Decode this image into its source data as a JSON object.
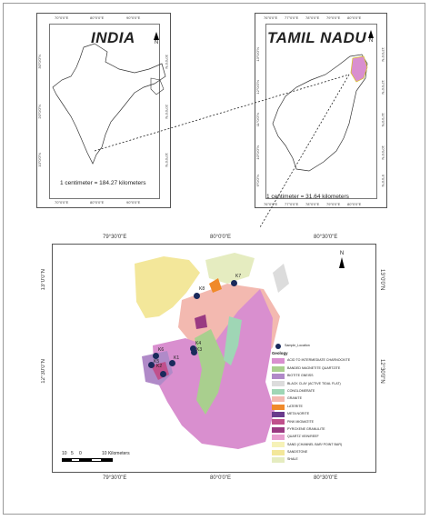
{
  "india_panel": {
    "title": "INDIA",
    "scale_text": "1 centimeter = 184.27 kilometers",
    "north_label": "N",
    "top_ticks": [
      "70°0'0\"E",
      "80°0'0\"E",
      "90°0'0\"E"
    ],
    "bottom_ticks": [
      "70°0'0\"E",
      "80°0'0\"E",
      "90°0'0\"E"
    ],
    "left_ticks": [
      "30°0'0\"N",
      "20°0'0\"N",
      "10°0'0\"N"
    ],
    "right_ticks": [
      "30°0'0\"N",
      "20°0'0\"N",
      "10°0'0\"N"
    ]
  },
  "tamilnadu_panel": {
    "title": "TAMIL NADU",
    "scale_text": "1 centimeter = 31.64 kilometers",
    "north_label": "N",
    "top_ticks": [
      "76°0'0\"E",
      "77°0'0\"E",
      "78°0'0\"E",
      "79°0'0\"E",
      "80°0'0\"E"
    ],
    "bottom_ticks": [
      "76°0'0\"E",
      "77°0'0\"E",
      "78°0'0\"E",
      "79°0'0\"E",
      "80°0'0\"E"
    ],
    "left_ticks": [
      "13°0'0\"N",
      "12°0'0\"N",
      "11°0'0\"N",
      "10°0'0\"N",
      "9°0'0\"N"
    ],
    "right_ticks": [
      "13°0'0\"N",
      "12°0'0\"N",
      "11°0'0\"N",
      "10°0'0\"N",
      "9°0'0\"N"
    ]
  },
  "study_map": {
    "top_coords": [
      "79°30'0\"E",
      "80°0'0\"E",
      "80°30'0\"E"
    ],
    "bottom_coords": [
      "79°30'0\"E",
      "80°0'0\"E",
      "80°30'0\"E"
    ],
    "left_coords": [
      "13°0'0\"N",
      "12°30'0\"N"
    ],
    "right_coords": [
      "13°0'0\"N",
      "12°30'0\"N"
    ],
    "north_label": "N",
    "samples": [
      "K1",
      "K2",
      "K3",
      "K4",
      "K5",
      "K6",
      "K7",
      "K8"
    ],
    "scale_bar": {
      "labels": [
        "10",
        "5",
        "0",
        "10 Kilometers"
      ]
    },
    "legend": {
      "sample_label": "Sample_Location",
      "heading": "Geology",
      "items": [
        {
          "label": "ACID TO INTERMEDIATE CHARNOCKITE",
          "color": "#d98fcf"
        },
        {
          "label": "BANDED MAGNETITE QUARTZITE",
          "color": "#a9cf8e"
        },
        {
          "label": "BIOTITE GNEISS",
          "color": "#b08ac8"
        },
        {
          "label": "BLACK CLAY (ACTIVE TIDAL FLAT)",
          "color": "#dcdcdc"
        },
        {
          "label": "CONGLOMERATE",
          "color": "#9fd6b5"
        },
        {
          "label": "GRANITE",
          "color": "#f3b9b0"
        },
        {
          "label": "LATERITE",
          "color": "#f08a2a"
        },
        {
          "label": "META NORITE",
          "color": "#6a3a8c"
        },
        {
          "label": "PINK MIGMATITE",
          "color": "#c0508c"
        },
        {
          "label": "PYROXENE GRANULITE",
          "color": "#9a3a82"
        },
        {
          "label": "QUARTZ VEIN/REEF",
          "color": "#e8a0d0"
        },
        {
          "label": "SAND (CHANNEL BAR/ POINT BAR)",
          "color": "#f6f2b8"
        },
        {
          "label": "SANDSTONE",
          "color": "#f3e79a"
        },
        {
          "label": "SHALE",
          "color": "#e5ecc0"
        }
      ]
    }
  }
}
